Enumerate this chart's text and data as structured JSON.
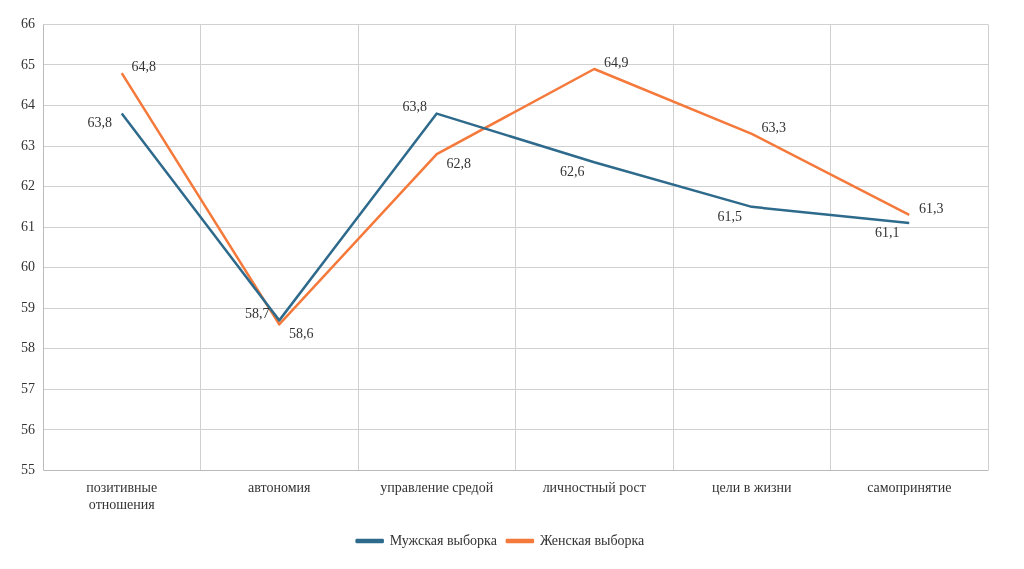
{
  "chart_data": {
    "type": "line",
    "categories": [
      "позитивные отношения",
      "автономия",
      "управление средой",
      "личностный рост",
      "цели в жизни",
      "самопринятие"
    ],
    "series": [
      {
        "name": "Мужская выборка",
        "color": "#2e6a8c",
        "values": [
          63.8,
          58.7,
          63.8,
          62.6,
          61.5,
          61.1
        ],
        "value_labels": [
          "63,8",
          "58,7",
          "63,8",
          "62,6",
          "61,5",
          "61,1"
        ]
      },
      {
        "name": "Женская выборка",
        "color": "#f4793a",
        "values": [
          64.8,
          58.6,
          62.8,
          64.9,
          63.3,
          61.3
        ],
        "value_labels": [
          "64,8",
          "58,6",
          "62,8",
          "64,9",
          "63,3",
          "61,3"
        ]
      }
    ],
    "ylim": [
      55,
      66
    ],
    "yticks": [
      55,
      56,
      57,
      58,
      59,
      60,
      61,
      62,
      63,
      64,
      65,
      66
    ],
    "grid": true,
    "legend": "bottom",
    "marker": "none",
    "line_style": "solid"
  }
}
